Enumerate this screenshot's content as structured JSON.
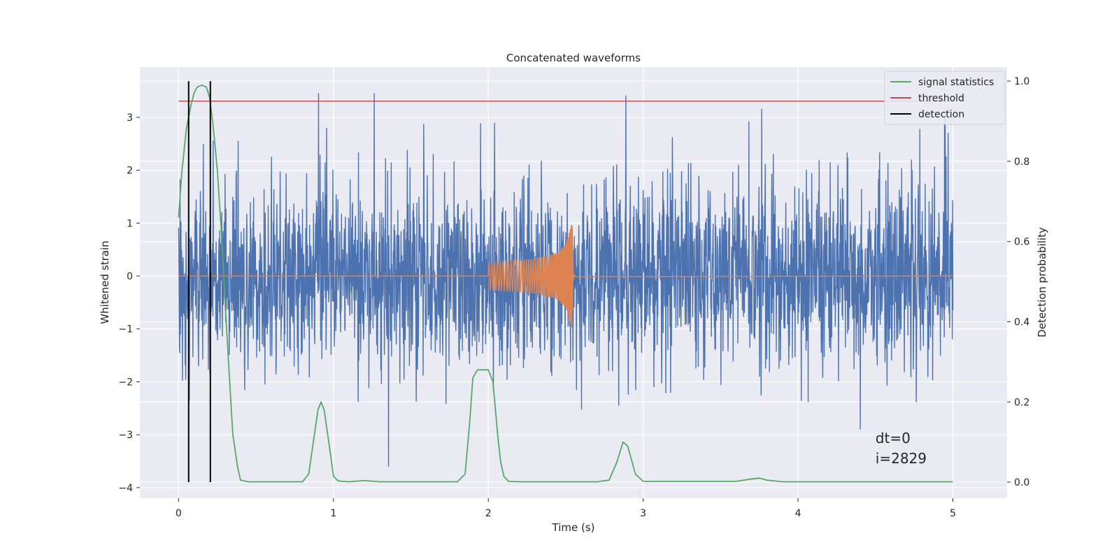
{
  "chart_data": {
    "type": "line",
    "title": "Concatenated waveforms",
    "xlabel": "Time (s)",
    "ylabel": "Whitened strain",
    "y2label": "Detection probability",
    "xlim": [
      -0.25,
      5.35
    ],
    "ylim": [
      -4.2,
      3.95
    ],
    "y2lim": [
      -0.04,
      1.035
    ],
    "xticks": [
      0,
      1,
      2,
      3,
      4,
      5
    ],
    "yticks": [
      -4,
      -3,
      -2,
      -1,
      0,
      1,
      2,
      3
    ],
    "y2ticks": [
      0.0,
      0.2,
      0.4,
      0.6,
      0.8,
      1.0
    ],
    "xtick_labels": [
      "0",
      "1",
      "2",
      "3",
      "4",
      "5"
    ],
    "ytick_labels": [
      "−4",
      "−3",
      "−2",
      "−1",
      "0",
      "1",
      "2",
      "3"
    ],
    "y2tick_labels": [
      "0.0",
      "0.2",
      "0.4",
      "0.6",
      "0.8",
      "1.0"
    ],
    "grid": true,
    "legend_position": "top-right",
    "series": [
      {
        "role": "whitened-strain-noise",
        "axis": "left",
        "color": "#4c72b0",
        "x_range": [
          0,
          5
        ],
        "envelope_typical": 1.0,
        "peak_max": 3.45,
        "peak_min": -3.85
      },
      {
        "role": "injected-chirp",
        "axis": "left",
        "color": "#dd8452",
        "x": [
          2.0,
          2.1,
          2.2,
          2.3,
          2.4,
          2.45,
          2.5,
          2.53,
          2.54,
          2.55,
          5.0
        ],
        "amplitude": [
          0.25,
          0.28,
          0.3,
          0.33,
          0.4,
          0.45,
          0.6,
          0.9,
          1.05,
          0.02,
          0.0
        ]
      },
      {
        "name": "signal statistics",
        "axis": "right",
        "color": "#55a868",
        "x": [
          0.0,
          0.02,
          0.05,
          0.08,
          0.1,
          0.12,
          0.15,
          0.18,
          0.2,
          0.22,
          0.25,
          0.28,
          0.3,
          0.33,
          0.35,
          0.38,
          0.4,
          0.45,
          0.8,
          0.84,
          0.87,
          0.9,
          0.92,
          0.94,
          0.97,
          1.0,
          1.03,
          1.1,
          1.2,
          1.3,
          1.8,
          1.85,
          1.88,
          1.9,
          1.93,
          1.97,
          2.0,
          2.03,
          2.06,
          2.08,
          2.1,
          2.13,
          2.2,
          2.7,
          2.78,
          2.83,
          2.87,
          2.9,
          2.95,
          3.0,
          3.6,
          3.7,
          3.75,
          3.8,
          3.9,
          5.0
        ],
        "values": [
          0.66,
          0.77,
          0.88,
          0.94,
          0.97,
          0.985,
          0.99,
          0.985,
          0.96,
          0.9,
          0.78,
          0.6,
          0.45,
          0.25,
          0.12,
          0.04,
          0.005,
          0.001,
          0.001,
          0.02,
          0.1,
          0.18,
          0.2,
          0.18,
          0.1,
          0.015,
          0.003,
          0.001,
          0.004,
          0.001,
          0.001,
          0.02,
          0.15,
          0.26,
          0.28,
          0.28,
          0.28,
          0.25,
          0.12,
          0.05,
          0.015,
          0.002,
          0.001,
          0.001,
          0.005,
          0.05,
          0.1,
          0.09,
          0.02,
          0.002,
          0.002,
          0.008,
          0.01,
          0.005,
          0.001,
          0.001
        ]
      },
      {
        "name": "threshold",
        "axis": "right",
        "color": "#c44e52",
        "x": [
          0,
          5
        ],
        "values": [
          0.95,
          0.95
        ]
      }
    ],
    "detections": {
      "name": "detection",
      "color": "#000000",
      "x": [
        0.065,
        0.205
      ],
      "y_range": [
        0.0,
        1.0
      ]
    },
    "annotations": {
      "line1": "dt=0",
      "line2": "i=2829",
      "x": 4.5,
      "y": -3.05
    }
  }
}
